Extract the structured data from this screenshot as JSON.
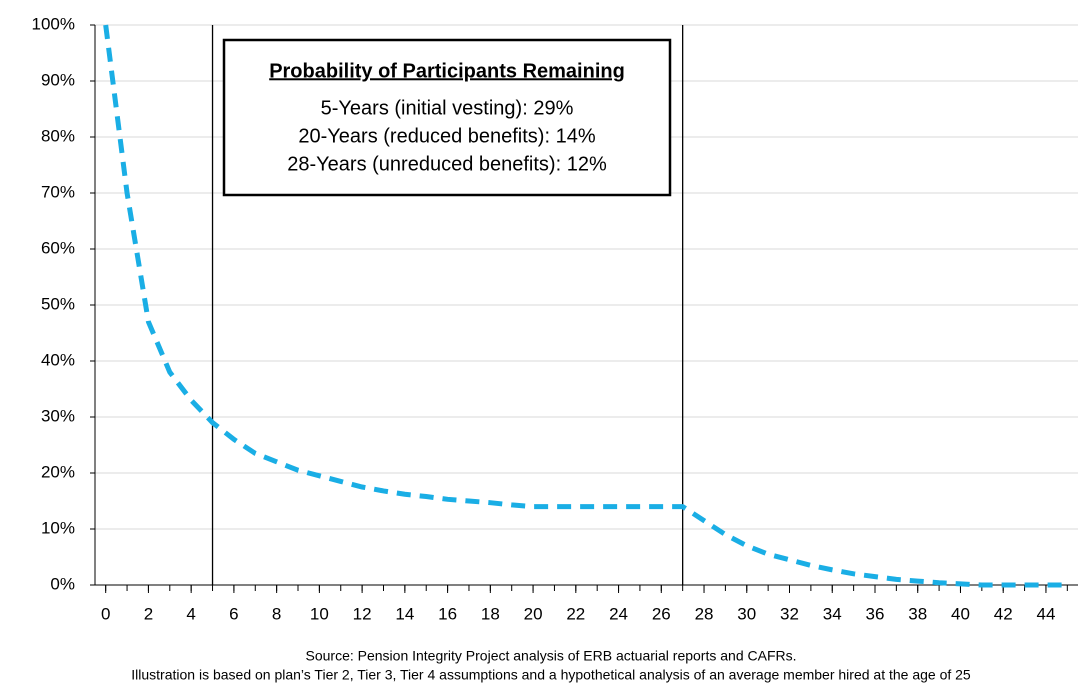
{
  "chart_data": {
    "type": "line",
    "x": [
      0,
      1,
      2,
      3,
      4,
      5,
      6,
      7,
      8,
      9,
      10,
      11,
      12,
      13,
      14,
      15,
      16,
      17,
      18,
      19,
      20,
      21,
      22,
      23,
      24,
      25,
      26,
      27,
      28,
      29,
      30,
      31,
      32,
      33,
      34,
      35,
      36,
      37,
      38,
      39,
      40,
      41,
      42,
      43,
      44,
      45
    ],
    "series": [
      {
        "name": "Probability of Participants Remaining",
        "color": "#1aaee5",
        "values": [
          100,
          70,
          47,
          38,
          33,
          29,
          26,
          23.5,
          22,
          20.5,
          19.5,
          18.5,
          17.5,
          16.8,
          16.2,
          15.8,
          15.3,
          15,
          14.7,
          14.3,
          14,
          14,
          14,
          14,
          14,
          14,
          14,
          14,
          11.5,
          9,
          7,
          5.5,
          4.5,
          3.5,
          2.7,
          2,
          1.5,
          1,
          0.7,
          0.4,
          0.2,
          0,
          0,
          0,
          0,
          0
        ]
      }
    ],
    "xlim": [
      -0.5,
      45.5
    ],
    "xticks": [
      0,
      2,
      4,
      6,
      8,
      10,
      12,
      14,
      16,
      18,
      20,
      22,
      24,
      26,
      28,
      30,
      32,
      34,
      36,
      38,
      40,
      42,
      44
    ],
    "ylim": [
      0,
      100
    ],
    "yticks": [
      {
        "value": 0,
        "label": "0%"
      },
      {
        "value": 10,
        "label": "10%"
      },
      {
        "value": 20,
        "label": "20%"
      },
      {
        "value": 30,
        "label": "30%"
      },
      {
        "value": 40,
        "label": "40%"
      },
      {
        "value": 50,
        "label": "50%"
      },
      {
        "value": 60,
        "label": "60%"
      },
      {
        "value": 70,
        "label": "70%"
      },
      {
        "value": 80,
        "label": "80%"
      },
      {
        "value": 90,
        "label": "90%"
      },
      {
        "value": 100,
        "label": "100%"
      }
    ],
    "grid": true,
    "vlines": [
      5,
      27
    ],
    "annotation": {
      "title": "Probability of Participants Remaining",
      "lines": [
        "5-Years (initial vesting): 29%",
        "20-Years (reduced benefits): 14%",
        "28-Years (unreduced benefits): 12%"
      ]
    },
    "notes": [
      "Source: Pension Integrity Project analysis of ERB actuarial reports and CAFRs.",
      "Illustration is based on plan’s Tier 2, Tier 3, Tier 4 assumptions and a hypothetical analysis of an average member hired at the age of 25"
    ]
  }
}
